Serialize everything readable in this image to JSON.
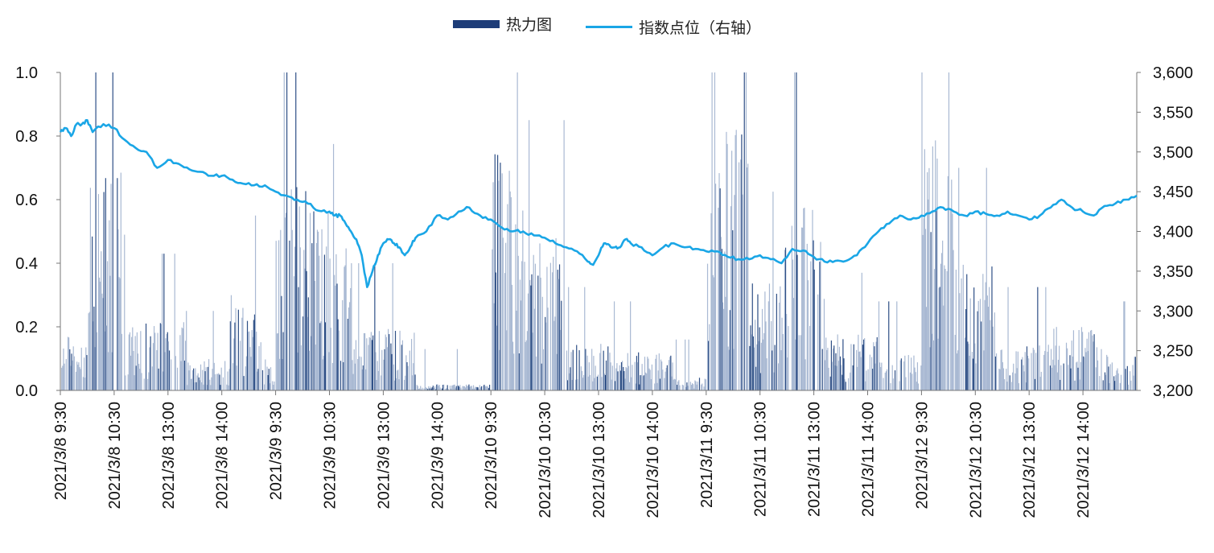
{
  "legend": {
    "heat_label": "热力图",
    "line_label": "指数点位（右轴）"
  },
  "colors": {
    "bar_light": "#a9b9d3",
    "bar_dark": "#2e4f86",
    "line": "#1aa6e6",
    "legend_bar": "#1d3c78",
    "axis": "#777777"
  },
  "chart_data": {
    "type": "bar+line",
    "y_left": {
      "lim": [
        0,
        1.0
      ],
      "ticks": [
        "0.0",
        "0.2",
        "0.4",
        "0.6",
        "0.8",
        "1.0"
      ]
    },
    "y_right": {
      "lim": [
        3200,
        3600
      ],
      "ticks": [
        "3,200",
        "3,250",
        "3,300",
        "3,350",
        "3,400",
        "3,450",
        "3,500",
        "3,550",
        "3,600"
      ]
    },
    "x_tick_labels": [
      "2021/3/8 9:30",
      "2021/3/8 10:30",
      "2021/3/8 13:00",
      "2021/3/8 14:00",
      "2021/3/9 9:30",
      "2021/3/9 10:30",
      "2021/3/9 13:00",
      "2021/3/9 14:00",
      "2021/3/10 9:30",
      "2021/3/10 10:30",
      "2021/3/10 13:00",
      "2021/3/10 14:00",
      "2021/3/11 9:30",
      "2021/3/11 10:30",
      "2021/3/11 13:00",
      "2021/3/11 14:00",
      "2021/3/12 9:30",
      "2021/3/12 10:30",
      "2021/3/12 13:00",
      "2021/3/12 14:00"
    ],
    "days": [
      "2021/3/8",
      "2021/3/9",
      "2021/3/10",
      "2021/3/11",
      "2021/3/12"
    ],
    "heat_profile": [
      {
        "day": "2021/3/8",
        "segments": [
          [
            0.0,
            0.04,
            0.18
          ],
          [
            0.04,
            0.12,
            0.15
          ],
          [
            0.12,
            0.3,
            0.7
          ],
          [
            0.3,
            0.58,
            0.22
          ],
          [
            0.58,
            0.78,
            0.1
          ],
          [
            0.78,
            0.93,
            0.3
          ],
          [
            0.93,
            1.0,
            0.1
          ]
        ]
      },
      {
        "day": "2021/3/9",
        "segments": [
          [
            0.0,
            0.25,
            0.65
          ],
          [
            0.25,
            0.35,
            0.45
          ],
          [
            0.35,
            0.65,
            0.2
          ],
          [
            0.65,
            1.0,
            0.02
          ]
        ]
      },
      {
        "day": "2021/3/10",
        "segments": [
          [
            0.0,
            0.15,
            0.75
          ],
          [
            0.15,
            0.35,
            0.5
          ],
          [
            0.35,
            0.55,
            0.15
          ],
          [
            0.55,
            0.85,
            0.12
          ],
          [
            0.85,
            1.0,
            0.04
          ]
        ]
      },
      {
        "day": "2021/3/11",
        "segments": [
          [
            0.0,
            0.2,
            0.85
          ],
          [
            0.2,
            0.35,
            0.35
          ],
          [
            0.35,
            0.55,
            0.6
          ],
          [
            0.55,
            0.8,
            0.18
          ],
          [
            0.8,
            1.0,
            0.12
          ]
        ]
      },
      {
        "day": "2021/3/12",
        "segments": [
          [
            0.0,
            0.15,
            0.8
          ],
          [
            0.15,
            0.35,
            0.4
          ],
          [
            0.35,
            0.6,
            0.15
          ],
          [
            0.6,
            0.85,
            0.2
          ],
          [
            0.85,
            1.0,
            0.12
          ]
        ]
      }
    ],
    "index_series": [
      [
        0.0,
        3525
      ],
      [
        0.005,
        3530
      ],
      [
        0.01,
        3520
      ],
      [
        0.015,
        3535
      ],
      [
        0.02,
        3535
      ],
      [
        0.025,
        3540
      ],
      [
        0.03,
        3525
      ],
      [
        0.04,
        3535
      ],
      [
        0.05,
        3530
      ],
      [
        0.06,
        3515
      ],
      [
        0.07,
        3505
      ],
      [
        0.08,
        3500
      ],
      [
        0.09,
        3480
      ],
      [
        0.1,
        3490
      ],
      [
        0.11,
        3485
      ],
      [
        0.12,
        3478
      ],
      [
        0.13,
        3475
      ],
      [
        0.14,
        3470
      ],
      [
        0.15,
        3470
      ],
      [
        0.16,
        3465
      ],
      [
        0.17,
        3460
      ],
      [
        0.18,
        3458
      ],
      [
        0.19,
        3458
      ],
      [
        0.2,
        3450
      ],
      [
        0.21,
        3445
      ],
      [
        0.22,
        3440
      ],
      [
        0.23,
        3435
      ],
      [
        0.24,
        3426
      ],
      [
        0.25,
        3425
      ],
      [
        0.255,
        3420
      ],
      [
        0.26,
        3420
      ],
      [
        0.265,
        3410
      ],
      [
        0.27,
        3400
      ],
      [
        0.275,
        3390
      ],
      [
        0.28,
        3370
      ],
      [
        0.285,
        3330
      ],
      [
        0.29,
        3350
      ],
      [
        0.295,
        3370
      ],
      [
        0.3,
        3385
      ],
      [
        0.305,
        3390
      ],
      [
        0.31,
        3385
      ],
      [
        0.315,
        3380
      ],
      [
        0.32,
        3370
      ],
      [
        0.325,
        3380
      ],
      [
        0.33,
        3392
      ],
      [
        0.34,
        3400
      ],
      [
        0.35,
        3420
      ],
      [
        0.36,
        3415
      ],
      [
        0.37,
        3425
      ],
      [
        0.38,
        3430
      ],
      [
        0.39,
        3420
      ],
      [
        0.4,
        3415
      ],
      [
        0.41,
        3405
      ],
      [
        0.42,
        3400
      ],
      [
        0.43,
        3400
      ],
      [
        0.44,
        3395
      ],
      [
        0.45,
        3392
      ],
      [
        0.46,
        3385
      ],
      [
        0.47,
        3380
      ],
      [
        0.48,
        3375
      ],
      [
        0.49,
        3362
      ],
      [
        0.495,
        3358
      ],
      [
        0.5,
        3370
      ],
      [
        0.505,
        3385
      ],
      [
        0.51,
        3383
      ],
      [
        0.515,
        3380
      ],
      [
        0.52,
        3380
      ],
      [
        0.525,
        3390
      ],
      [
        0.53,
        3385
      ],
      [
        0.54,
        3380
      ],
      [
        0.55,
        3370
      ],
      [
        0.56,
        3380
      ],
      [
        0.57,
        3385
      ],
      [
        0.58,
        3380
      ],
      [
        0.59,
        3378
      ],
      [
        0.6,
        3375
      ],
      [
        0.61,
        3375
      ],
      [
        0.62,
        3368
      ],
      [
        0.63,
        3365
      ],
      [
        0.64,
        3365
      ],
      [
        0.65,
        3370
      ],
      [
        0.66,
        3365
      ],
      [
        0.67,
        3360
      ],
      [
        0.68,
        3378
      ],
      [
        0.69,
        3376
      ],
      [
        0.7,
        3368
      ],
      [
        0.71,
        3362
      ],
      [
        0.72,
        3363
      ],
      [
        0.73,
        3363
      ],
      [
        0.74,
        3370
      ],
      [
        0.75,
        3385
      ],
      [
        0.76,
        3400
      ],
      [
        0.77,
        3410
      ],
      [
        0.78,
        3420
      ],
      [
        0.79,
        3415
      ],
      [
        0.8,
        3420
      ],
      [
        0.81,
        3425
      ],
      [
        0.82,
        3430
      ],
      [
        0.83,
        3425
      ],
      [
        0.84,
        3420
      ],
      [
        0.85,
        3425
      ],
      [
        0.86,
        3422
      ],
      [
        0.87,
        3420
      ],
      [
        0.88,
        3425
      ],
      [
        0.89,
        3420
      ],
      [
        0.9,
        3415
      ],
      [
        0.91,
        3420
      ],
      [
        0.92,
        3430
      ],
      [
        0.93,
        3440
      ],
      [
        0.94,
        3430
      ],
      [
        0.95,
        3425
      ],
      [
        0.96,
        3420
      ],
      [
        0.97,
        3432
      ],
      [
        0.98,
        3435
      ],
      [
        0.99,
        3440
      ],
      [
        1.0,
        3445
      ]
    ],
    "grid": false,
    "legend_position": "top-center"
  }
}
